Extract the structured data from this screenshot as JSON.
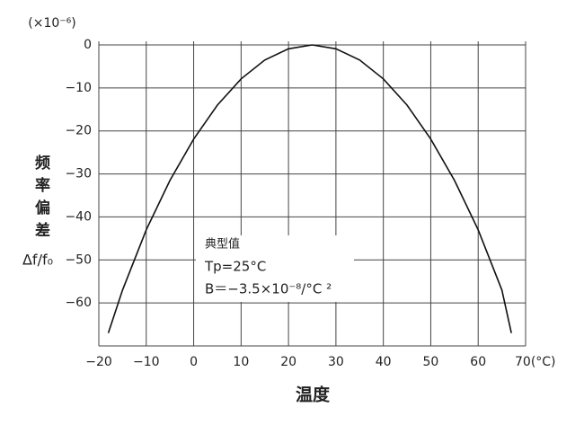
{
  "chart_data": {
    "type": "line",
    "y_unit_label": "(×10⁻⁶)",
    "y_axis_label": "频率偏差",
    "y_axis_symbol": "Δf/f₀",
    "x_axis_label": "温度",
    "annotations": [
      "典型值",
      "Tp=25°C",
      "B＝−3.5×10⁻⁸/°C ²"
    ],
    "x": [
      -18,
      -15,
      -10,
      -5,
      0,
      5,
      10,
      15,
      20,
      25,
      30,
      35,
      40,
      45,
      50,
      55,
      60,
      65,
      67
    ],
    "series": [
      {
        "color": "#111111",
        "values": [
          -67,
          -57,
          -43,
          -31.5,
          -21.9,
          -14,
          -7.9,
          -3.5,
          -0.9,
          0,
          -0.9,
          -3.5,
          -7.9,
          -14,
          -21.9,
          -31.5,
          -43,
          -57,
          -67
        ]
      }
    ],
    "xlim": [
      -20,
      70
    ],
    "ylim": [
      -70,
      0
    ],
    "xticks": [
      {
        "value": -20,
        "label": "−20"
      },
      {
        "value": -10,
        "label": "−10"
      },
      0,
      10,
      20,
      30,
      40,
      50,
      60,
      {
        "value": 70,
        "label": "70(°C)"
      }
    ],
    "yticks": [
      0,
      {
        "value": -10,
        "label": "−10"
      },
      {
        "value": -20,
        "label": "−20"
      },
      {
        "value": -30,
        "label": "−30"
      },
      {
        "value": -40,
        "label": "−40"
      },
      {
        "value": -50,
        "label": "−50"
      },
      {
        "value": -60,
        "label": "−60"
      }
    ],
    "grid": true
  }
}
